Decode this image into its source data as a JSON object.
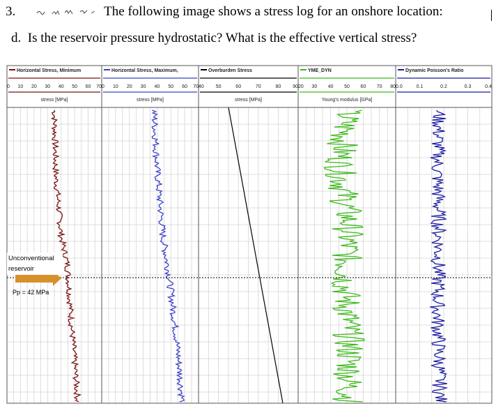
{
  "question": {
    "number": "3.",
    "intro": "The following image shows a stress log for an onshore location:",
    "part": "d.",
    "text": "Is the reservoir pressure hydrostatic? What is the effective vertical stress?"
  },
  "figure": {
    "tracks": [
      {
        "legend": "Horizontal Stress, Minimum",
        "axis_title": "stress [MPa]",
        "ticks": [
          "0",
          "10",
          "20",
          "30",
          "40",
          "50",
          "60",
          "70"
        ],
        "color": "#7a1010"
      },
      {
        "legend": "Horizontal Stress, Maximum,",
        "axis_title": "stress [MPa]",
        "ticks": [
          "0",
          "10",
          "20",
          "30",
          "40",
          "50",
          "60",
          "70"
        ],
        "color": "#3a40c8"
      },
      {
        "legend": "Overburden Stress",
        "axis_title": "stress [MPa]",
        "ticks": [
          "40",
          "50",
          "60",
          "70",
          "80",
          "90"
        ],
        "color": "#000000"
      },
      {
        "legend": "YME_DYN",
        "axis_title": "Young's modulus [GPa]",
        "ticks": [
          "20",
          "30",
          "40",
          "50",
          "60",
          "70",
          "80"
        ],
        "color": "#3cb81a"
      },
      {
        "legend": "Dynamic Poisson's Ratio",
        "axis_title": "",
        "ticks": [
          "0.0",
          "0.1",
          "0.2",
          "0.3",
          "0.4"
        ],
        "color": "#1a1aa0"
      }
    ],
    "annotation_reservoir_line1": "Unconventional",
    "annotation_reservoir_line2": "reservoir",
    "annotation_pressure": "Pp = 42 MPa",
    "arrow_color": "#d8902a"
  }
}
